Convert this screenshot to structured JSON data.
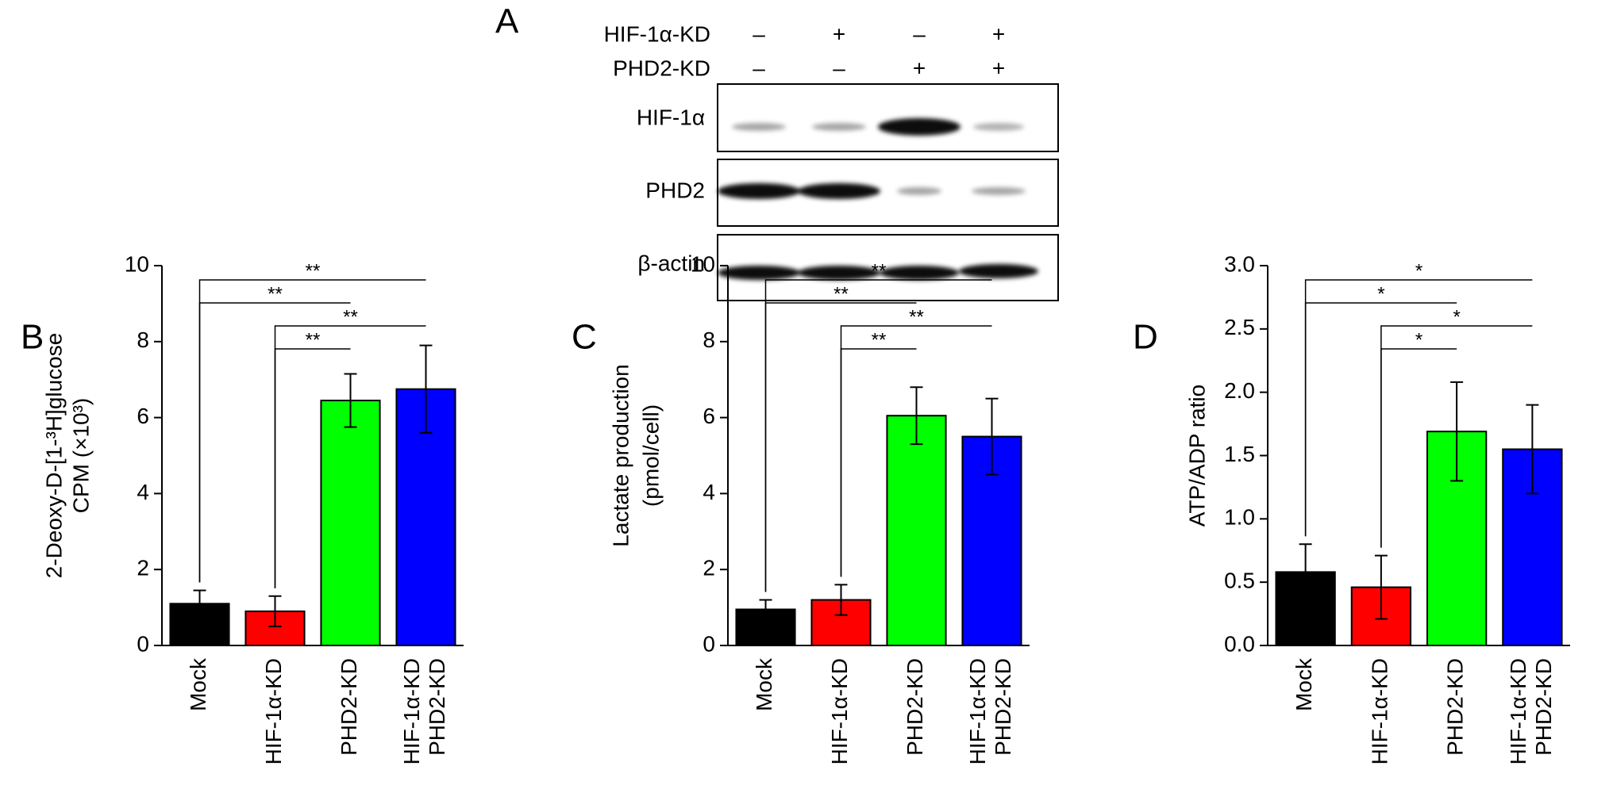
{
  "blot": {
    "panel_label": "A",
    "rows": [
      {
        "label": "HIF-1α-KD",
        "lanes": [
          "–",
          "+",
          "–",
          "+"
        ]
      },
      {
        "label": "PHD2-KD",
        "lanes": [
          "–",
          "–",
          "+",
          "+"
        ]
      }
    ],
    "bands": [
      "HIF-1α",
      "PHD2",
      "β-actin"
    ]
  },
  "chart_data": [
    {
      "type": "bar",
      "panel_label": "B",
      "ylabel": [
        "2-Deoxy-D-[1-³H]glucose",
        "CPM (×10³)"
      ],
      "categories": [
        [
          "Mock"
        ],
        [
          "HIF-1α-KD"
        ],
        [
          "PHD2-KD"
        ],
        [
          "HIF-1α-KD",
          "PHD2-KD"
        ]
      ],
      "values": [
        1.1,
        0.9,
        6.45,
        6.75
      ],
      "errors": [
        0.35,
        0.4,
        0.7,
        1.15
      ],
      "colors": [
        "#000000",
        "#ff0000",
        "#00ff00",
        "#0000ff"
      ],
      "ylim": [
        0,
        10
      ],
      "yticks": [
        0,
        2,
        4,
        6,
        8,
        10
      ],
      "significance": [
        {
          "pair": [
            0,
            3
          ],
          "label": "**"
        },
        {
          "pair": [
            0,
            2
          ],
          "label": "**"
        },
        {
          "pair": [
            1,
            3
          ],
          "label": "**"
        },
        {
          "pair": [
            1,
            2
          ],
          "label": "**"
        }
      ]
    },
    {
      "type": "bar",
      "panel_label": "C",
      "ylabel": [
        "Lactate production",
        "(pmol/cell)"
      ],
      "categories": [
        [
          "Mock"
        ],
        [
          "HIF-1α-KD"
        ],
        [
          "PHD2-KD"
        ],
        [
          "HIF-1α-KD",
          "PHD2-KD"
        ]
      ],
      "values": [
        0.95,
        1.2,
        6.05,
        5.5
      ],
      "errors": [
        0.25,
        0.4,
        0.75,
        1.0
      ],
      "colors": [
        "#000000",
        "#ff0000",
        "#00ff00",
        "#0000ff"
      ],
      "ylim": [
        0,
        10
      ],
      "yticks": [
        0,
        2,
        4,
        6,
        8,
        10
      ],
      "significance": [
        {
          "pair": [
            0,
            3
          ],
          "label": "**"
        },
        {
          "pair": [
            0,
            2
          ],
          "label": "**"
        },
        {
          "pair": [
            1,
            3
          ],
          "label": "**"
        },
        {
          "pair": [
            1,
            2
          ],
          "label": "**"
        }
      ]
    },
    {
      "type": "bar",
      "panel_label": "D",
      "ylabel": [
        "ATP/ADP ratio"
      ],
      "categories": [
        [
          "Mock"
        ],
        [
          "HIF-1α-KD"
        ],
        [
          "PHD2-KD"
        ],
        [
          "HIF-1α-KD",
          "PHD2-KD"
        ]
      ],
      "values": [
        0.58,
        0.46,
        1.69,
        1.55
      ],
      "errors": [
        0.22,
        0.25,
        0.39,
        0.35
      ],
      "colors": [
        "#000000",
        "#ff0000",
        "#00ff00",
        "#0000ff"
      ],
      "ylim": [
        0,
        3
      ],
      "yticks": [
        {
          "value": 0,
          "label": "0.0"
        },
        0.5,
        {
          "value": 1,
          "label": "1.0"
        },
        1.5,
        {
          "value": 2,
          "label": "2.0"
        },
        2.5,
        {
          "value": 3,
          "label": "3.0"
        }
      ],
      "significance": [
        {
          "pair": [
            0,
            3
          ],
          "label": "*"
        },
        {
          "pair": [
            0,
            2
          ],
          "label": "*"
        },
        {
          "pair": [
            1,
            3
          ],
          "label": "*"
        },
        {
          "pair": [
            1,
            2
          ],
          "label": "*"
        }
      ]
    }
  ]
}
